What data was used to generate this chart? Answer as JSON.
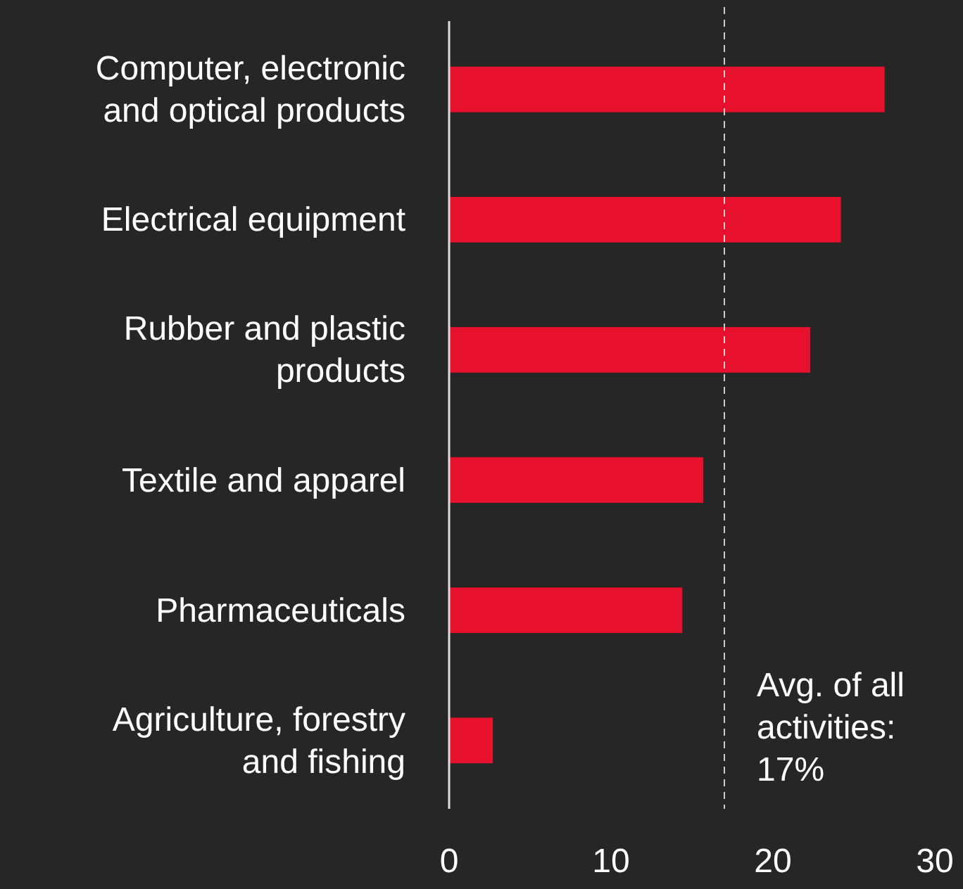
{
  "chart_data": {
    "type": "bar",
    "orientation": "horizontal",
    "categories": [
      "Computer, electronic and optical products",
      "Electrical equipment",
      "Rubber and plastic products",
      "Textile and apparel",
      "Pharmaceuticals",
      "Agriculture, forestry and fishing"
    ],
    "values": [
      26.9,
      24.2,
      22.3,
      15.7,
      14.4,
      2.7
    ],
    "color": "#e8112d",
    "xlim": [
      0,
      30
    ],
    "xticks": [
      0,
      10,
      20,
      30
    ],
    "grid": false,
    "ref_lines": [
      {
        "axis": "x",
        "value": 17,
        "label": "Avg. of all activities: 17%",
        "line_style": "dashed",
        "color": "#cccccc"
      }
    ]
  }
}
